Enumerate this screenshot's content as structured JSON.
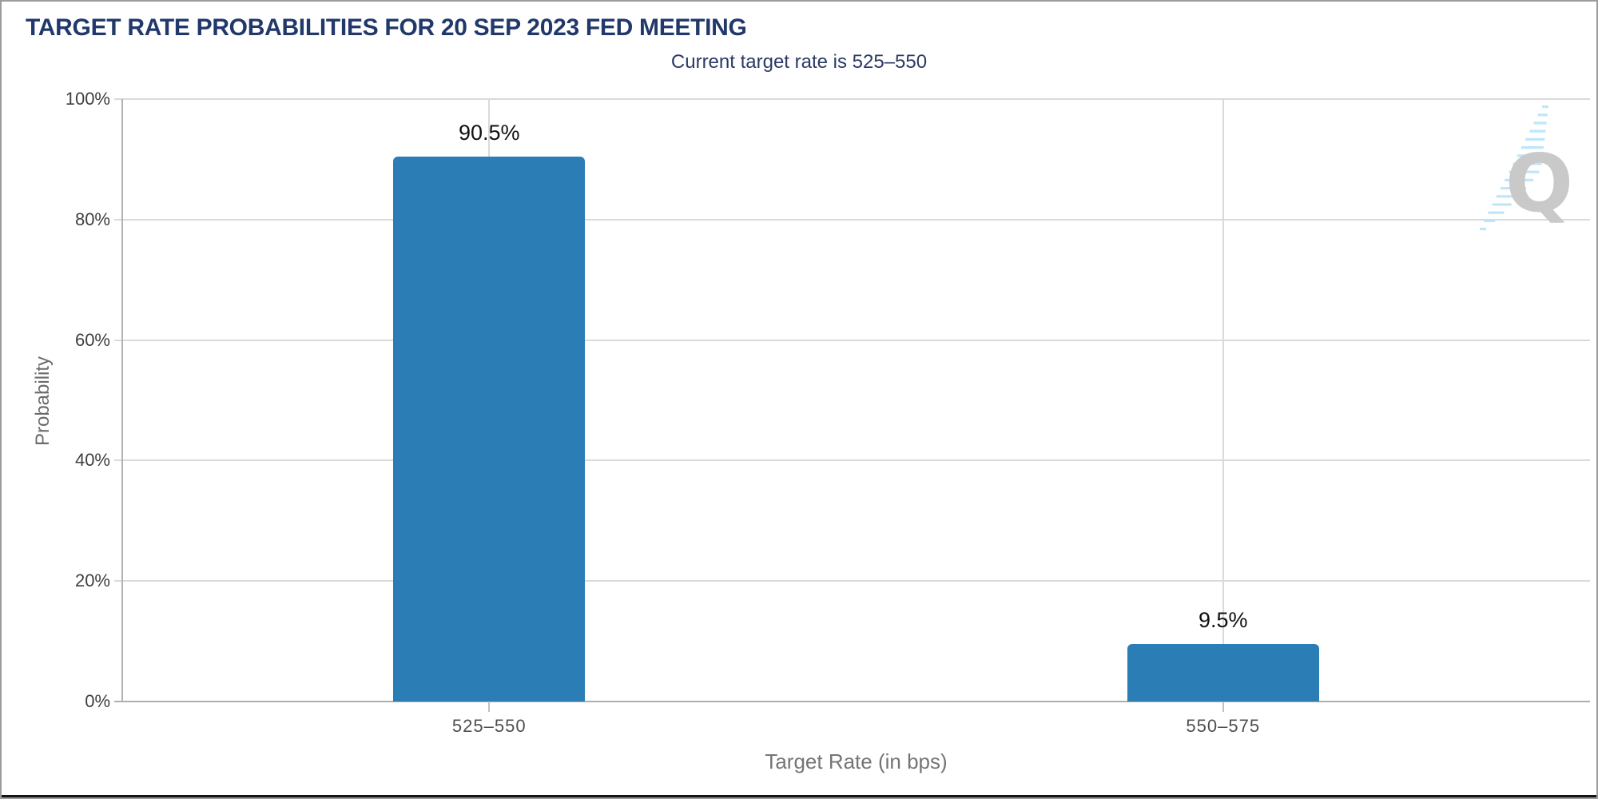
{
  "header": {
    "title": "TARGET RATE PROBABILITIES FOR 20 SEP 2023 FED MEETING",
    "subtitle": "Current target rate is 525–550"
  },
  "axes": {
    "y_title": "Probability",
    "x_title": "Target Rate (in bps)"
  },
  "logo": {
    "letter": "Q"
  },
  "colors": {
    "bar": "#2a7db5",
    "title_navy": "#21386b",
    "grid": "#dadada",
    "axis_line": "#b2b2b2",
    "logo_gray": "#c9c9c9",
    "logo_stripe_blue": "#bee6fa"
  },
  "chart_data": {
    "type": "bar",
    "title": "TARGET RATE PROBABILITIES FOR 20 SEP 2023 FED MEETING",
    "subtitle": "Current target rate is 525–550",
    "categories": [
      "525–550",
      "550–575"
    ],
    "values": [
      90.5,
      9.5
    ],
    "value_labels": [
      "90.5%",
      "9.5%"
    ],
    "xlabel": "Target Rate (in bps)",
    "ylabel": "Probability",
    "ylim": [
      0,
      100
    ],
    "yticks": [
      0,
      20,
      40,
      60,
      80,
      100
    ],
    "ytick_labels": [
      "0%",
      "20%",
      "40%",
      "60%",
      "80%",
      "100%"
    ],
    "grid": true,
    "legend": false,
    "bar_color": "#2a7db5"
  }
}
